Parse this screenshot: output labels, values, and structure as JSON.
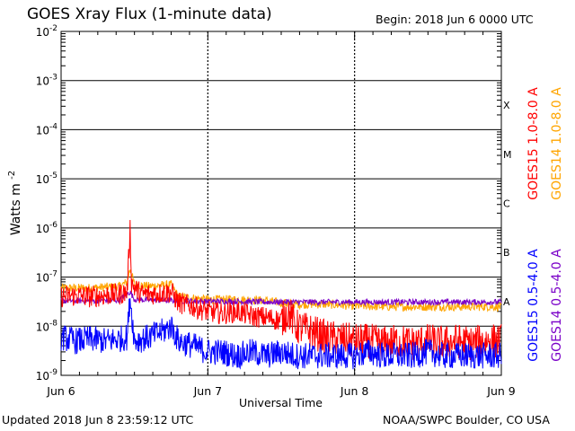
{
  "header": {
    "title": "GOES Xray Flux (1-minute data)",
    "begin": "Begin:  2018 Jun 6 0000 UTC"
  },
  "footer": {
    "updated": "Updated 2018 Jun  8 23:59:12 UTC",
    "credit": "NOAA/SWPC Boulder, CO USA"
  },
  "chart_data": {
    "type": "line",
    "title": "GOES Xray Flux (1-minute data)",
    "xlabel": "Universal Time",
    "ylabel": "Watts m",
    "ylabel_superscript": "-2",
    "yscale": "log",
    "ylim": [
      1e-09,
      0.01
    ],
    "xlim": [
      "Jun 6",
      "Jun 9"
    ],
    "x_ticks": [
      "Jun 6",
      "Jun 7",
      "Jun 8",
      "Jun 9"
    ],
    "y_ticks": [
      {
        "base": "10",
        "exp": "-9",
        "value": 1e-09
      },
      {
        "base": "10",
        "exp": "-8",
        "value": 1e-08
      },
      {
        "base": "10",
        "exp": "-7",
        "value": 1e-07
      },
      {
        "base": "10",
        "exp": "-6",
        "value": 1e-06
      },
      {
        "base": "10",
        "exp": "-5",
        "value": 1e-05
      },
      {
        "base": "10",
        "exp": "-4",
        "value": 0.0001
      },
      {
        "base": "10",
        "exp": "-3",
        "value": 0.001
      },
      {
        "base": "10",
        "exp": "-2",
        "value": 0.01
      }
    ],
    "flare_classes": [
      {
        "label": "A",
        "lower": 1e-08
      },
      {
        "label": "B",
        "lower": 1e-07
      },
      {
        "label": "C",
        "lower": 1e-06
      },
      {
        "label": "M",
        "lower": 1e-05
      },
      {
        "label": "X",
        "lower": 0.0001
      }
    ],
    "grid": true,
    "legend": "right",
    "series": [
      {
        "name": "GOES15 1.0-8.0 A",
        "color": "#ff0000",
        "x_days": [
          0.0,
          0.1,
          0.2,
          0.3,
          0.4,
          0.45,
          0.47,
          0.48,
          0.5,
          0.55,
          0.6,
          0.7,
          0.75,
          0.8,
          0.9,
          1.0,
          1.1,
          1.2,
          1.3,
          1.4,
          1.5,
          1.55,
          1.6,
          1.7,
          1.8,
          1.9,
          2.0,
          2.1,
          2.2,
          2.3,
          2.4,
          2.5,
          2.6,
          2.7,
          2.8,
          2.9,
          3.0
        ],
        "y": [
          4e-08,
          4.2e-08,
          4e-08,
          4.3e-08,
          4.5e-08,
          5e-08,
          1e-06,
          8e-08,
          6e-08,
          4.5e-08,
          4.5e-08,
          4.8e-08,
          5e-08,
          3e-08,
          2.5e-08,
          2e-08,
          1.8e-08,
          2e-08,
          1.6e-08,
          1.5e-08,
          1.3e-08,
          2e-08,
          1e-08,
          8e-09,
          6e-09,
          5.5e-09,
          5e-09,
          5e-09,
          4.5e-09,
          5e-09,
          4.5e-09,
          5e-09,
          4.5e-09,
          5e-09,
          4.5e-09,
          5e-09,
          5e-09
        ]
      },
      {
        "name": "GOES14 1.0-8.0 A",
        "color": "#ffa500",
        "x_days": [
          0.0,
          0.2,
          0.4,
          0.45,
          0.47,
          0.5,
          0.6,
          0.75,
          0.8,
          1.0,
          1.2,
          1.4,
          1.5,
          1.6,
          1.8,
          2.0,
          2.2,
          2.4,
          2.6,
          2.8,
          3.0
        ],
        "y": [
          6e-08,
          6e-08,
          6.5e-08,
          8e-08,
          1.5e-07,
          7e-08,
          6.5e-08,
          7e-08,
          4e-08,
          3.5e-08,
          3.5e-08,
          3.3e-08,
          3e-08,
          2.8e-08,
          2.8e-08,
          2.6e-08,
          2.5e-08,
          2.5e-08,
          2.5e-08,
          2.5e-08,
          2.5e-08
        ]
      },
      {
        "name": "GOES15 0.5-4.0 A",
        "color": "#0000ff",
        "x_days": [
          0.0,
          0.1,
          0.2,
          0.3,
          0.4,
          0.45,
          0.47,
          0.5,
          0.6,
          0.7,
          0.75,
          0.8,
          0.9,
          1.0,
          1.1,
          1.2,
          1.3,
          1.4,
          1.5,
          1.6,
          1.7,
          1.8,
          1.9,
          2.0,
          2.1,
          2.2,
          2.3,
          2.4,
          2.5,
          2.6,
          2.7,
          2.8,
          2.9,
          3.0
        ],
        "y": [
          6e-09,
          5e-09,
          5.5e-09,
          5e-09,
          5.5e-09,
          6e-09,
          4e-08,
          5e-09,
          6e-09,
          8e-09,
          1e-08,
          5e-09,
          4e-09,
          3e-09,
          3e-09,
          2.5e-09,
          3e-09,
          2.5e-09,
          3e-09,
          2.5e-09,
          2.5e-09,
          2.5e-09,
          2.5e-09,
          2.5e-09,
          3e-09,
          2.5e-09,
          2.5e-09,
          2.5e-09,
          3e-09,
          2.5e-09,
          2.5e-09,
          2.5e-09,
          2.5e-09,
          2.5e-09
        ]
      },
      {
        "name": "GOES14 0.5-4.0 A",
        "color": "#7a00c8",
        "x_days": [
          0.0,
          0.2,
          0.4,
          0.47,
          0.5,
          0.6,
          0.8,
          1.0,
          1.2,
          1.4,
          1.6,
          1.8,
          2.0,
          2.2,
          2.4,
          2.6,
          2.8,
          3.0
        ],
        "y": [
          3.3e-08,
          3.3e-08,
          3.4e-08,
          5e-08,
          3.5e-08,
          3.4e-08,
          3.3e-08,
          3.2e-08,
          3.2e-08,
          3.1e-08,
          3.1e-08,
          3.1e-08,
          3.1e-08,
          3.1e-08,
          3.1e-08,
          3.1e-08,
          3.1e-08,
          3.1e-08
        ]
      }
    ]
  }
}
